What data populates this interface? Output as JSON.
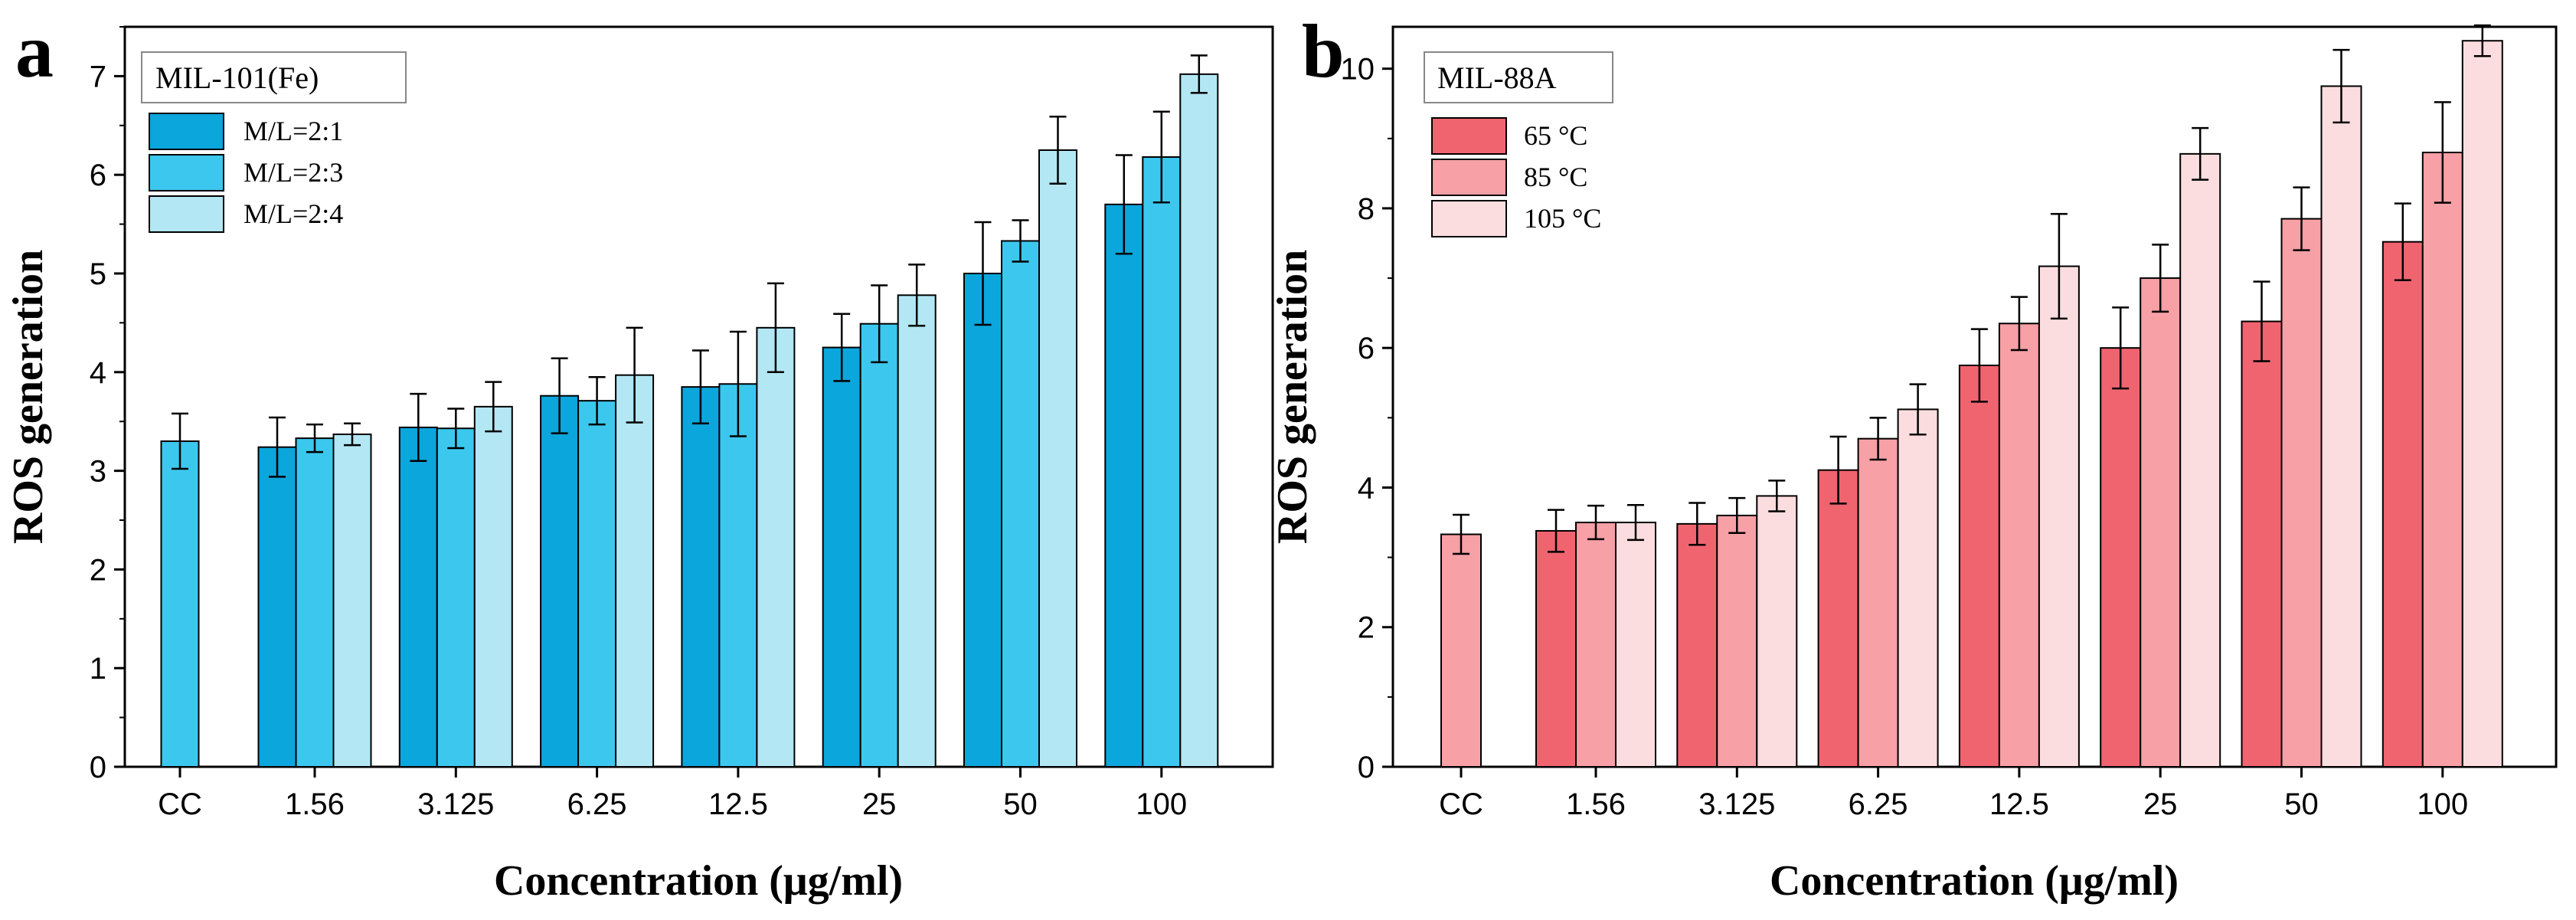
{
  "chart_data": [
    {
      "type": "bar",
      "panel_label": "a",
      "title": "MIL-101(Fe)",
      "xlabel": "Concentration (μg/ml)",
      "ylabel": "ROS generation",
      "ylim": [
        0,
        7.5
      ],
      "yticks": [
        "0",
        "1",
        "2",
        "3",
        "4",
        "5",
        "6",
        "7"
      ],
      "control": {
        "label": "CC",
        "value": 3.3,
        "error": 0.28,
        "color": "#3cc8ee"
      },
      "categories": [
        "1.56",
        "3.125",
        "6.25",
        "12.5",
        "25",
        "50",
        "100"
      ],
      "series": [
        {
          "name": "M/L=2:1",
          "color": "#0ba6dc",
          "values": [
            3.24,
            3.44,
            3.76,
            3.85,
            4.25,
            5.0,
            5.7
          ],
          "errors": [
            0.3,
            0.34,
            0.38,
            0.37,
            0.34,
            0.52,
            0.5
          ]
        },
        {
          "name": "M/L=2:3",
          "color": "#3cc8ee",
          "values": [
            3.33,
            3.43,
            3.71,
            3.88,
            4.49,
            5.33,
            6.18
          ],
          "errors": [
            0.14,
            0.2,
            0.24,
            0.53,
            0.39,
            0.21,
            0.46
          ]
        },
        {
          "name": "M/L=2:4",
          "color": "#b3e7f4",
          "values": [
            3.37,
            3.65,
            3.97,
            4.45,
            4.78,
            6.25,
            7.02
          ],
          "errors": [
            0.11,
            0.25,
            0.48,
            0.45,
            0.31,
            0.34,
            0.19
          ]
        }
      ]
    },
    {
      "type": "bar",
      "panel_label": "b",
      "title": "MIL-88A",
      "xlabel": "Concentration (μg/ml)",
      "ylabel": "ROS generation",
      "ylim": [
        0,
        10.6
      ],
      "yticks": [
        "0",
        "2",
        "4",
        "6",
        "8",
        "10"
      ],
      "control": {
        "label": "CC",
        "value": 3.33,
        "error": 0.28,
        "color": "#f7a0a6"
      },
      "categories": [
        "1.56",
        "3.125",
        "6.25",
        "12.5",
        "25",
        "50",
        "100"
      ],
      "series": [
        {
          "name": "65 °C",
          "color": "#f0646f",
          "values": [
            3.38,
            3.48,
            4.25,
            5.75,
            6.0,
            6.38,
            7.52
          ],
          "errors": [
            0.3,
            0.3,
            0.48,
            0.52,
            0.58,
            0.57,
            0.55
          ]
        },
        {
          "name": "85 °C",
          "color": "#f7a0a6",
          "values": [
            3.5,
            3.6,
            4.7,
            6.35,
            7.0,
            7.85,
            8.8
          ],
          "errors": [
            0.24,
            0.25,
            0.3,
            0.38,
            0.48,
            0.45,
            0.72
          ]
        },
        {
          "name": "105 °C",
          "color": "#fcdddf",
          "values": [
            3.5,
            3.88,
            5.12,
            7.17,
            8.78,
            9.75,
            10.4
          ],
          "errors": [
            0.25,
            0.22,
            0.36,
            0.75,
            0.37,
            0.52,
            0.22
          ]
        }
      ]
    }
  ]
}
